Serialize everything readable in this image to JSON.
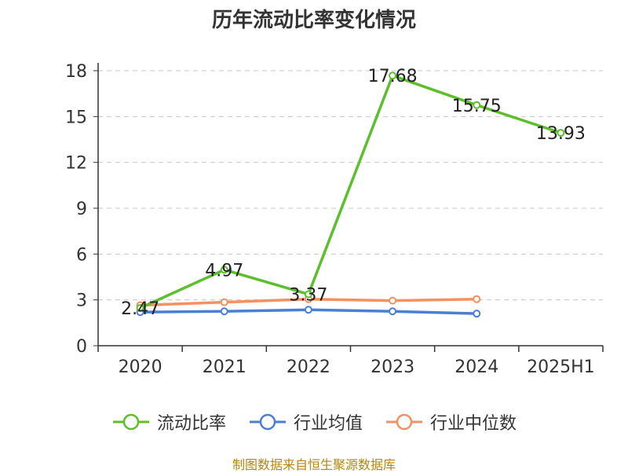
{
  "chart_data": {
    "type": "line",
    "title": "历年流动比率变化情况",
    "categories": [
      "2020",
      "2021",
      "2022",
      "2023",
      "2024",
      "2025H1"
    ],
    "ylim": [
      0,
      18
    ],
    "yticks": [
      0,
      3,
      6,
      9,
      12,
      15,
      18
    ],
    "grid": true,
    "legend_position": "bottom",
    "series": [
      {
        "name": "流动比率",
        "color": "#5cc02d",
        "values": [
          2.47,
          4.97,
          3.37,
          17.68,
          15.75,
          13.93
        ],
        "labels": [
          "2.47",
          "4.97",
          "3.37",
          "17.68",
          "15.75",
          "13.93"
        ]
      },
      {
        "name": "行业均值",
        "color": "#4a7fd6",
        "values": [
          2.2,
          2.25,
          2.35,
          2.25,
          2.1,
          null
        ]
      },
      {
        "name": "行业中位数",
        "color": "#f59062",
        "values": [
          2.65,
          2.85,
          3.05,
          2.95,
          3.05,
          null
        ]
      }
    ]
  },
  "source_note": "制图数据来自恒生聚源数据库"
}
